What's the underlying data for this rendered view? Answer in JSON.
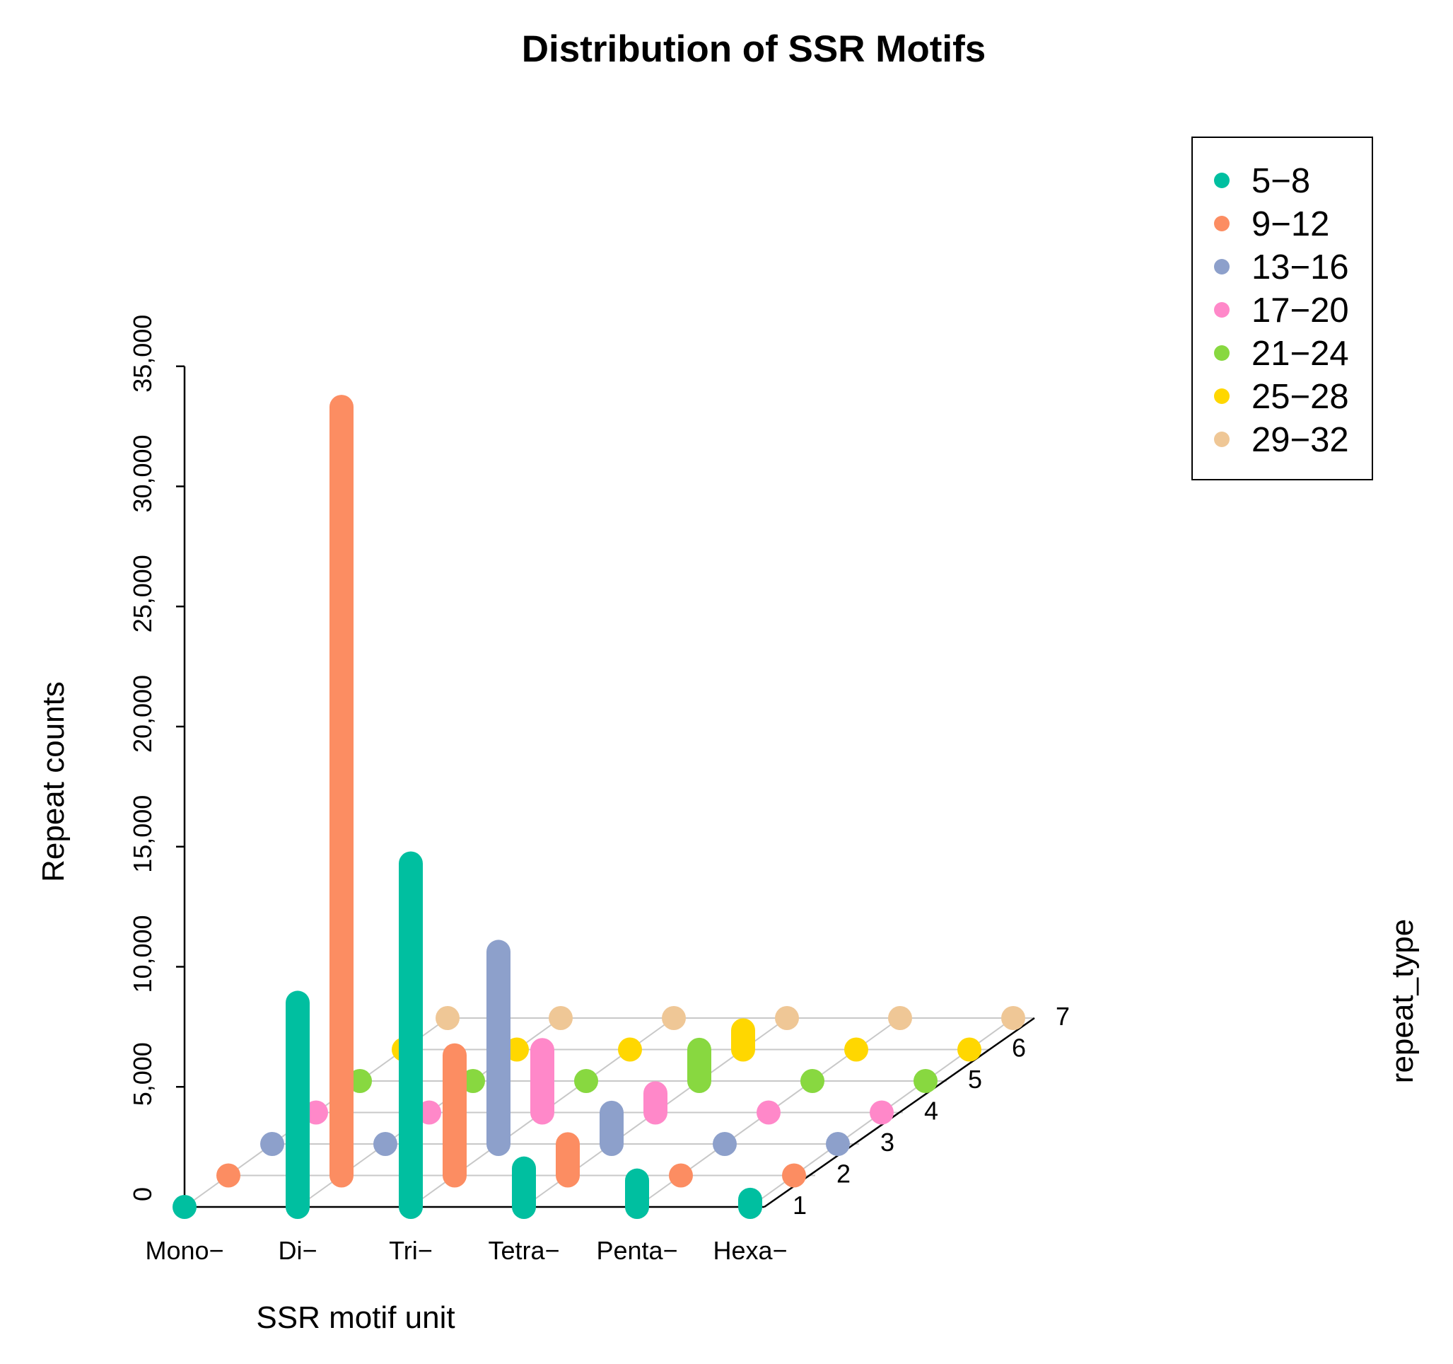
{
  "chart_data": {
    "type": "bar",
    "subtype": "3d-scatter-histogram",
    "title": "Distribution of SSR Motifs",
    "xlabel": "SSR motif unit",
    "ylabel": "Repeat counts",
    "zlabel": "repeat_type",
    "categories": [
      "Mono−",
      "Di−",
      "Tri−",
      "Tetra−",
      "Penta−",
      "Hexa−"
    ],
    "depth_ticks": [
      "1",
      "2",
      "3",
      "4",
      "5",
      "6",
      "7"
    ],
    "ylim": [
      0,
      35000
    ],
    "yticks": [
      "0",
      "5,000",
      "10,000",
      "15,000",
      "20,000",
      "25,000",
      "30,000",
      "35,000"
    ],
    "ytick_values": [
      0,
      5000,
      10000,
      15000,
      20000,
      25000,
      30000,
      35000
    ],
    "legend_position": "top-right",
    "series": [
      {
        "name": "5−8",
        "depth": 1,
        "color": "#00BFA0",
        "values": [
          0,
          8500,
          14300,
          1600,
          1100,
          300
        ]
      },
      {
        "name": "9−12",
        "depth": 2,
        "color": "#FC8D62",
        "values": [
          0,
          32000,
          5000,
          1300,
          0,
          0
        ]
      },
      {
        "name": "13−16",
        "depth": 3,
        "color": "#8DA0CB",
        "values": [
          0,
          0,
          8000,
          1300,
          0,
          0
        ]
      },
      {
        "name": "17−20",
        "depth": 4,
        "color": "#FF88C9",
        "values": [
          0,
          0,
          2600,
          800,
          0,
          0
        ]
      },
      {
        "name": "21−24",
        "depth": 5,
        "color": "#88D840",
        "values": [
          0,
          0,
          0,
          1300,
          0,
          0
        ]
      },
      {
        "name": "25−28",
        "depth": 6,
        "color": "#FFD700",
        "values": [
          0,
          0,
          0,
          800,
          0,
          0
        ]
      },
      {
        "name": "29−32",
        "depth": 7,
        "color": "#EFC796",
        "values": [
          0,
          0,
          0,
          0,
          0,
          0
        ]
      }
    ]
  }
}
